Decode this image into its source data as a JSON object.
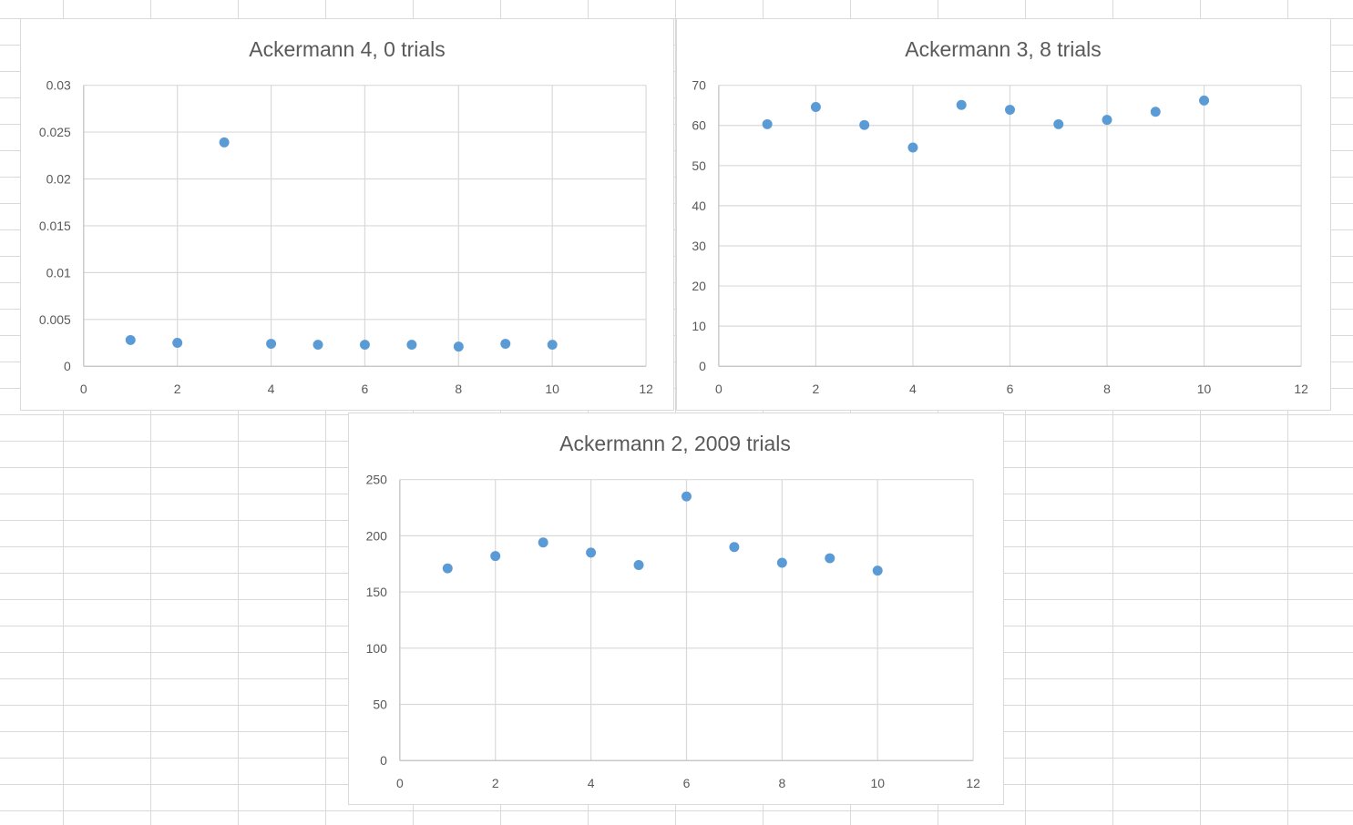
{
  "chart_data": [
    {
      "id": "a4",
      "type": "scatter",
      "title": "Ackermann 4, 0 trials",
      "x": [
        1,
        2,
        3,
        4,
        5,
        6,
        7,
        8,
        9,
        10
      ],
      "y": [
        0.0028,
        0.0025,
        0.0239,
        0.0024,
        0.0023,
        0.0023,
        0.0023,
        0.0021,
        0.0024,
        0.0023
      ],
      "xlim": [
        0,
        12
      ],
      "ylim": [
        0,
        0.03
      ],
      "xticks": [
        "0",
        "2",
        "4",
        "6",
        "8",
        "10",
        "12"
      ],
      "yticks": [
        "0",
        "0.005",
        "0.01",
        "0.015",
        "0.02",
        "0.025",
        "0.03"
      ],
      "grid": true,
      "marker_color": "#5b9bd5"
    },
    {
      "id": "a3",
      "type": "scatter",
      "title": "Ackermann 3, 8 trials",
      "x": [
        1,
        2,
        3,
        4,
        5,
        6,
        7,
        8,
        9,
        10
      ],
      "y": [
        60.3,
        64.6,
        60.1,
        54.5,
        65.1,
        63.9,
        60.3,
        61.4,
        63.4,
        66.2
      ],
      "xlim": [
        0,
        12
      ],
      "ylim": [
        0,
        70
      ],
      "xticks": [
        "0",
        "2",
        "4",
        "6",
        "8",
        "10",
        "12"
      ],
      "yticks": [
        "0",
        "10",
        "20",
        "30",
        "40",
        "50",
        "60",
        "70"
      ],
      "grid": true,
      "marker_color": "#5b9bd5"
    },
    {
      "id": "a2",
      "type": "scatter",
      "title": "Ackermann 2, 2009 trials",
      "x": [
        1,
        2,
        3,
        4,
        5,
        6,
        7,
        8,
        9,
        10
      ],
      "y": [
        171,
        182,
        194,
        185,
        174,
        235,
        190,
        176,
        180,
        169
      ],
      "xlim": [
        0,
        12
      ],
      "ylim": [
        0,
        250
      ],
      "xticks": [
        "0",
        "2",
        "4",
        "6",
        "8",
        "10",
        "12"
      ],
      "yticks": [
        "0",
        "50",
        "100",
        "150",
        "200",
        "250"
      ],
      "grid": true,
      "marker_color": "#5b9bd5"
    }
  ]
}
